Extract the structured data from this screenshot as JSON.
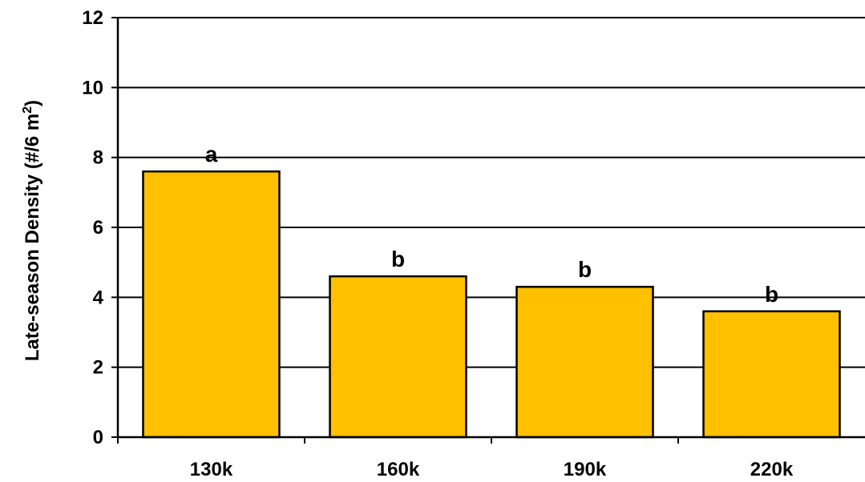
{
  "chart_data": {
    "type": "bar",
    "title": "",
    "xlabel": "",
    "ylabel_main": "Late-season Density (#/6 m",
    "ylabel_sup": "2",
    "ylabel_end": ")",
    "ylim": [
      0,
      12
    ],
    "yticks": [
      0,
      2,
      4,
      6,
      8,
      10,
      12
    ],
    "grid": "horizontal",
    "bar_color": "#FFC000",
    "categories": [
      "130k",
      "160k",
      "190k",
      "220k"
    ],
    "values": [
      7.6,
      4.6,
      4.3,
      3.6
    ],
    "bar_labels": [
      "a",
      "b",
      "b",
      "b"
    ]
  }
}
